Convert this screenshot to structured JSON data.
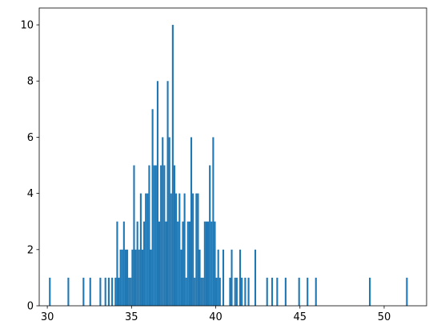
{
  "chart_data": {
    "type": "histogram",
    "bins": [
      30.1,
      30.2,
      30.3,
      30.4,
      30.5,
      30.6,
      30.7,
      30.8,
      30.9,
      31.0,
      31.1,
      31.2,
      31.3,
      31.4,
      31.5,
      31.6,
      31.7,
      31.8,
      31.9,
      32.0,
      32.1,
      32.2,
      32.3,
      32.4,
      32.5,
      32.6,
      32.7,
      32.8,
      32.9,
      33.0,
      33.1,
      33.2,
      33.3,
      33.4,
      33.5,
      33.6,
      33.7,
      33.8,
      33.9,
      34.0,
      34.1,
      34.2,
      34.3,
      34.4,
      34.5,
      34.6,
      34.7,
      34.8,
      34.9,
      35.0,
      35.1,
      35.2,
      35.3,
      35.4,
      35.5,
      35.6,
      35.7,
      35.8,
      35.9,
      36.0,
      36.1,
      36.2,
      36.3,
      36.4,
      36.5,
      36.6,
      36.7,
      36.8,
      36.9,
      37.0,
      37.1,
      37.2,
      37.3,
      37.4,
      37.5,
      37.6,
      37.7,
      37.8,
      37.9,
      38.0,
      38.1,
      38.2,
      38.3,
      38.4,
      38.5,
      38.6,
      38.7,
      38.8,
      38.9,
      39.0,
      39.1,
      39.2,
      39.3,
      39.4,
      39.5,
      39.6,
      39.7,
      39.8,
      39.9,
      40.0,
      40.1,
      40.2,
      40.3,
      40.4,
      40.5,
      40.6,
      40.7,
      40.8,
      40.9,
      41.0,
      41.1,
      41.2,
      41.3,
      41.4,
      41.5,
      41.6,
      41.7,
      41.8,
      41.9,
      42.0,
      42.1,
      42.2,
      42.3,
      42.4,
      42.5,
      42.6,
      42.7,
      42.8,
      42.9,
      43.0,
      43.1,
      43.2,
      43.3,
      43.4,
      43.5,
      43.6,
      43.7,
      43.8,
      43.9,
      44.0,
      44.1,
      44.2,
      44.3,
      44.4,
      44.5,
      44.6,
      44.7,
      44.8,
      44.9,
      45.0,
      45.1,
      45.2,
      45.3,
      45.4,
      45.5,
      45.6,
      45.7,
      45.8,
      45.9,
      46.0,
      46.1,
      46.2,
      46.3,
      46.4,
      46.5,
      46.6,
      46.7,
      46.8,
      46.9,
      47.0,
      47.1,
      47.2,
      47.3,
      47.4,
      47.5,
      47.6,
      47.7,
      47.8,
      47.9,
      48.0,
      48.1,
      48.2,
      48.3,
      48.4,
      48.5,
      48.6,
      48.7,
      48.8,
      48.9,
      49.0,
      49.1,
      49.2,
      49.3,
      49.4,
      49.5,
      49.6,
      49.7,
      49.8,
      49.9,
      50.0,
      50.1,
      50.2,
      50.3,
      50.4,
      50.5,
      50.6,
      50.7,
      50.8,
      50.9,
      51.0,
      51.1,
      51.2,
      51.3,
      51.4
    ],
    "values": [
      1,
      0,
      0,
      0,
      0,
      0,
      0,
      0,
      0,
      0,
      0,
      1,
      0,
      0,
      0,
      0,
      0,
      0,
      0,
      0,
      1,
      0,
      0,
      0,
      1,
      0,
      0,
      0,
      0,
      0,
      1,
      0,
      0,
      1,
      0,
      1,
      0,
      1,
      0,
      1,
      3,
      1,
      2,
      2,
      3,
      2,
      2,
      1,
      1,
      2,
      5,
      2,
      3,
      2,
      4,
      2,
      3,
      4,
      4,
      5,
      2,
      7,
      5,
      5,
      8,
      3,
      5,
      6,
      5,
      3,
      8,
      6,
      4,
      10,
      5,
      4,
      3,
      4,
      2,
      3,
      4,
      1,
      3,
      3,
      6,
      4,
      1,
      4,
      4,
      2,
      1,
      1,
      3,
      3,
      3,
      5,
      3,
      6,
      3,
      1,
      2,
      1,
      0,
      2,
      0,
      0,
      0,
      1,
      2,
      0,
      1,
      1,
      0,
      2,
      1,
      0,
      1,
      0,
      1,
      0,
      0,
      0,
      2,
      0,
      0,
      0,
      0,
      0,
      0,
      1,
      0,
      0,
      1,
      0,
      0,
      1,
      0,
      0,
      0,
      0,
      1,
      0,
      0,
      0,
      0,
      0,
      0,
      0,
      1,
      0,
      0,
      0,
      0,
      1,
      0,
      0,
      0,
      0,
      1,
      0,
      0,
      0,
      0,
      0,
      0,
      0,
      0,
      0,
      0,
      0,
      0,
      0,
      0,
      0,
      0,
      0,
      0,
      0,
      0,
      0,
      0,
      0,
      0,
      0,
      0,
      0,
      0,
      0,
      0,
      0,
      1,
      0,
      0,
      0,
      0,
      0,
      0,
      0,
      0,
      0,
      0,
      0,
      0,
      0,
      0,
      0,
      0,
      0,
      0,
      0,
      0,
      0,
      1
    ],
    "color": "#1f77b4",
    "xlim": [
      29.52,
      52.52
    ],
    "xticks": [
      30,
      35,
      40,
      45,
      50
    ],
    "ylim": [
      0,
      10.6
    ],
    "yticks": [
      0,
      2,
      4,
      6,
      8,
      10
    ]
  }
}
